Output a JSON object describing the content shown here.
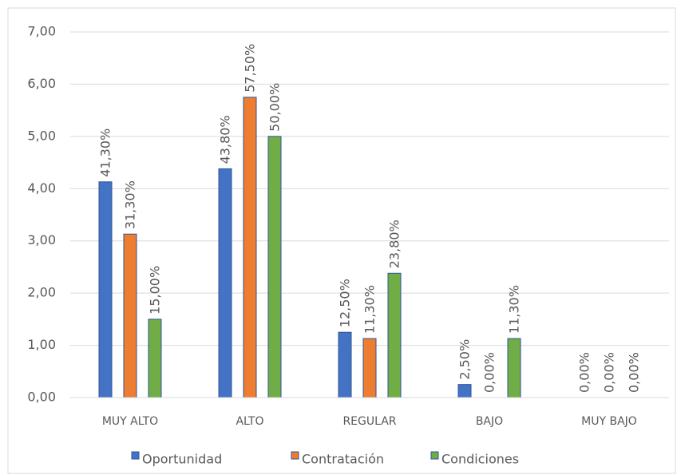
{
  "chart_data": {
    "type": "bar",
    "categories": [
      "MUY ALTO",
      "ALTO",
      "REGULAR",
      "BAJO",
      "MUY BAJO"
    ],
    "series": [
      {
        "name": "Oportunidad",
        "color": "#4472c4",
        "values": [
          4.13,
          4.38,
          1.25,
          0.25,
          0
        ],
        "value_labels": [
          "41,30%",
          "43,80%",
          "12,50%",
          "2,50%",
          "0,00%"
        ]
      },
      {
        "name": "Contratación",
        "color": "#ed7d31",
        "values": [
          3.13,
          5.75,
          1.13,
          0,
          0
        ],
        "value_labels": [
          "31,30%",
          "57,50%",
          "11,30%",
          "0,00%",
          "0,00%"
        ]
      },
      {
        "name": "Condiciones",
        "color": "#70ad47",
        "values": [
          1.5,
          5.0,
          2.38,
          1.13,
          0
        ],
        "value_labels": [
          "15,00%",
          "50,00%",
          "23,80%",
          "11,30%",
          "0,00%"
        ]
      }
    ],
    "ylim": [
      0,
      7
    ],
    "yticks": [
      {
        "value": 0,
        "label": "0,00"
      },
      {
        "value": 1,
        "label": "1,00"
      },
      {
        "value": 2,
        "label": "2,00"
      },
      {
        "value": 3,
        "label": "3,00"
      },
      {
        "value": 4,
        "label": "4,00"
      },
      {
        "value": 5,
        "label": "5,00"
      },
      {
        "value": 6,
        "label": "6,00"
      },
      {
        "value": 7,
        "label": "7,00"
      }
    ],
    "grid": true,
    "legend": "bottom"
  }
}
